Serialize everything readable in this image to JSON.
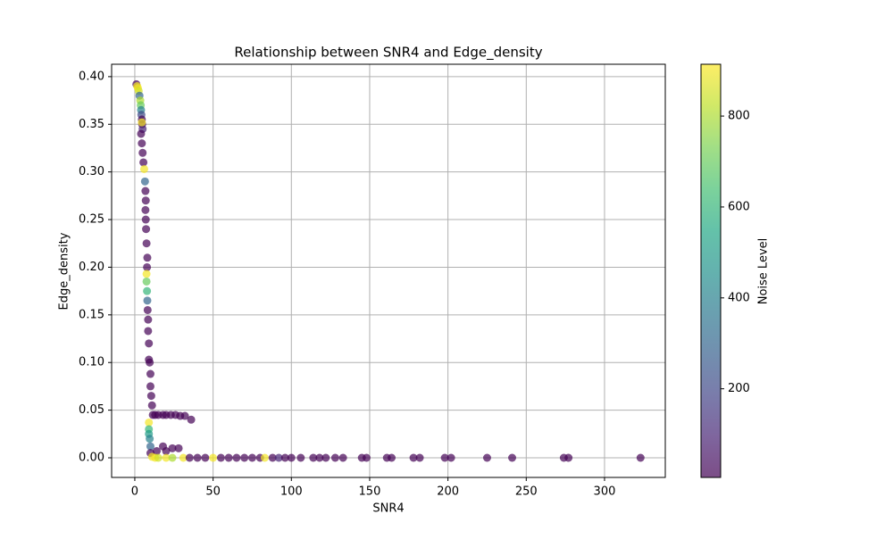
{
  "chart_data": {
    "type": "scatter",
    "title": "Relationship between SNR4 and Edge_density",
    "x_label": "SNR4",
    "y_label": "Edge_density",
    "colorbar_label": "Noise Level",
    "colormap": "viridis",
    "alpha": 0.7,
    "xlim": [
      -14.8,
      338.8
    ],
    "ylim": [
      -0.0206,
      0.413
    ],
    "clim": [
      5,
      914
    ],
    "xticks": [
      0,
      50,
      100,
      150,
      200,
      250,
      300
    ],
    "yticks": [
      {
        "value": 0,
        "label": "0.00"
      },
      {
        "value": 0.05,
        "label": "0.05"
      },
      {
        "value": 0.1,
        "label": "0.10"
      },
      {
        "value": 0.15,
        "label": "0.15"
      },
      {
        "value": 0.2,
        "label": "0.20"
      },
      {
        "value": 0.25,
        "label": "0.25"
      },
      {
        "value": 0.3,
        "label": "0.30"
      },
      {
        "value": 0.35,
        "label": "0.35"
      },
      {
        "value": 0.4,
        "label": "0.40"
      }
    ],
    "cticks": [
      200,
      400,
      600,
      800
    ],
    "grid": true,
    "x": [
      1,
      1.5,
      2,
      2.5,
      3,
      3.5,
      3.8,
      4,
      4.2,
      4.5,
      4.7,
      5,
      4.5,
      4,
      4.5,
      5,
      5.5,
      6,
      6.5,
      6.8,
      7,
      6.8,
      7,
      7.2,
      7.5,
      8,
      7.8,
      7.5,
      7.5,
      7.8,
      8,
      8.2,
      8.5,
      8.5,
      9,
      9,
      9.5,
      10,
      10,
      10.5,
      11,
      11.5,
      9,
      9,
      9,
      9.5,
      10,
      10,
      13,
      15,
      18,
      20,
      23,
      26,
      29,
      32,
      36,
      18,
      24,
      28,
      14,
      20,
      11,
      13,
      15,
      20,
      24,
      31,
      35,
      40,
      45,
      50,
      55,
      60,
      65,
      70,
      75,
      80,
      83,
      88,
      92,
      96,
      100,
      106,
      114,
      118,
      122,
      128,
      133,
      145,
      148,
      161,
      164,
      178,
      182,
      198,
      202,
      225,
      241,
      274,
      277,
      323
    ],
    "y": [
      0.392,
      0.39,
      0.388,
      0.385,
      0.38,
      0.375,
      0.37,
      0.365,
      0.36,
      0.355,
      0.35,
      0.345,
      0.352,
      0.34,
      0.33,
      0.32,
      0.31,
      0.303,
      0.29,
      0.28,
      0.27,
      0.26,
      0.25,
      0.24,
      0.225,
      0.21,
      0.2,
      0.193,
      0.185,
      0.175,
      0.165,
      0.155,
      0.145,
      0.133,
      0.12,
      0.103,
      0.1,
      0.088,
      0.075,
      0.065,
      0.055,
      0.045,
      0.037,
      0.03,
      0.025,
      0.02,
      0.012,
      0.005,
      0.045,
      0.045,
      0.045,
      0.045,
      0.045,
      0.045,
      0.044,
      0.044,
      0.04,
      0.012,
      0.01,
      0.01,
      0.007,
      0.007,
      0.001,
      0,
      0,
      0,
      0,
      0,
      0,
      0,
      0,
      0,
      0,
      0,
      0,
      0,
      0,
      0,
      0,
      0,
      0,
      0,
      0,
      0,
      0,
      0,
      0,
      0,
      0,
      0,
      0,
      0,
      0,
      0,
      0,
      0,
      0,
      0,
      0,
      0,
      0,
      0
    ],
    "noise": [
      10,
      900,
      900,
      850,
      300,
      800,
      700,
      400,
      200,
      10,
      10,
      100,
      900,
      10,
      10,
      10,
      10,
      900,
      300,
      10,
      10,
      10,
      10,
      10,
      10,
      10,
      10,
      900,
      700,
      600,
      300,
      10,
      10,
      10,
      10,
      10,
      10,
      10,
      10,
      10,
      10,
      10,
      900,
      600,
      500,
      400,
      300,
      10,
      10,
      10,
      10,
      10,
      10,
      10,
      10,
      10,
      10,
      10,
      10,
      10,
      10,
      10,
      900,
      900,
      850,
      900,
      800,
      900,
      10,
      10,
      10,
      900,
      10,
      10,
      10,
      10,
      10,
      10,
      900,
      10,
      100,
      10,
      10,
      10,
      10,
      10,
      10,
      10,
      10,
      10,
      10,
      10,
      10,
      10,
      10,
      10,
      10,
      10,
      10,
      10,
      10,
      10
    ]
  }
}
